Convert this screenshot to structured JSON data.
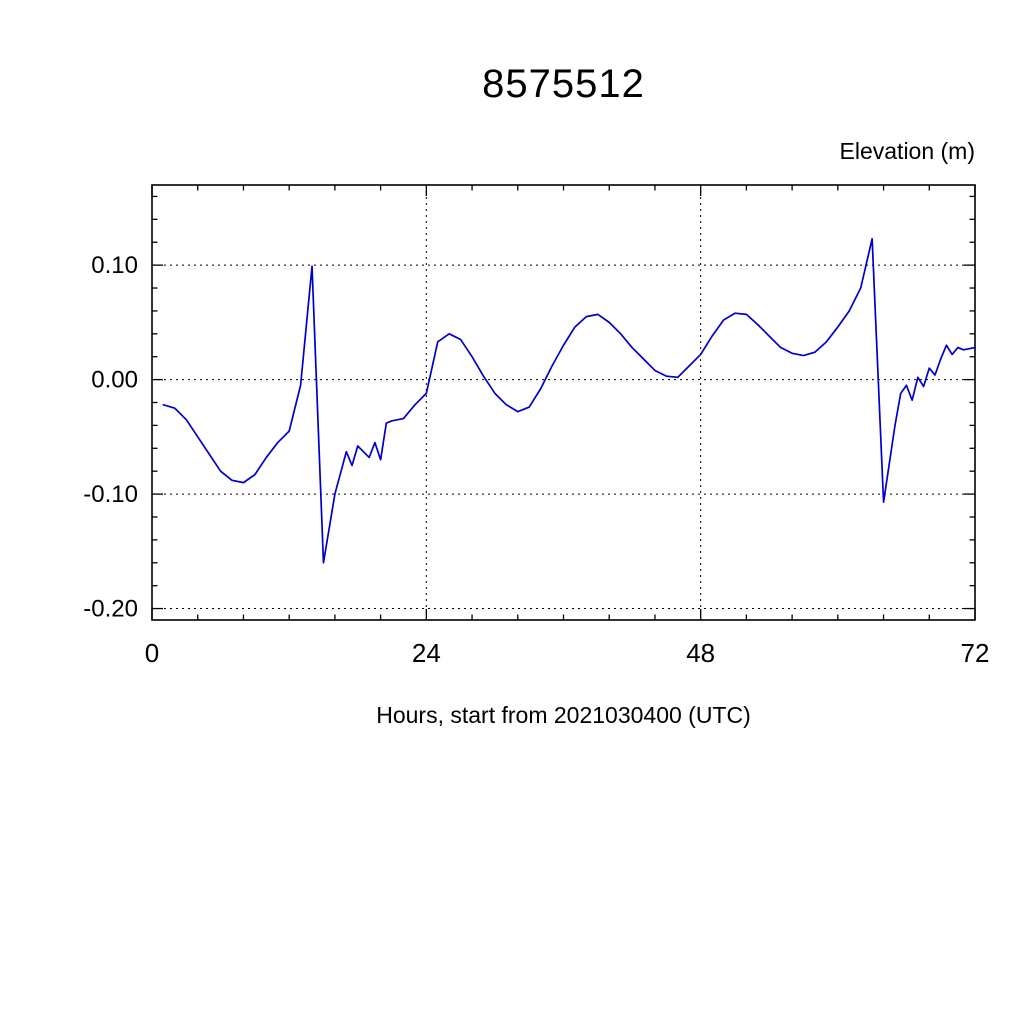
{
  "page": {
    "background_color": "#ffffff"
  },
  "chart": {
    "title": "8575512",
    "y_axis_title": "Elevation (m)",
    "x_axis_title": "Hours, start from 2021030400 (UTC)"
  },
  "chart_data": {
    "type": "line",
    "title": "8575512",
    "xlabel": "Hours, start from 2021030400 (UTC)",
    "ylabel": "Elevation (m)",
    "xlim": [
      0,
      72
    ],
    "ylim": [
      -0.21,
      0.17
    ],
    "x_major_ticks": [
      0,
      24,
      48,
      72
    ],
    "x_tick_labels": [
      "0",
      "24",
      "48",
      "72"
    ],
    "x_minor_step": 4,
    "y_major_ticks": [
      -0.2,
      -0.1,
      0,
      0.1
    ],
    "y_tick_labels": [
      "-0.20",
      "-0.10",
      "0.00",
      "0.10"
    ],
    "y_minor_step": 0.02,
    "grid": true,
    "grid_style": "dashed",
    "grid_x_lines": [
      24,
      48
    ],
    "grid_y_lines": [
      -0.2,
      -0.1,
      0,
      0.1
    ],
    "legend_position": "none",
    "line_color": "#0000cc",
    "axis_color": "#000000",
    "series": [
      {
        "name": "elevation",
        "points": [
          [
            1,
            -0.022
          ],
          [
            2,
            -0.025
          ],
          [
            3,
            -0.035
          ],
          [
            4,
            -0.05
          ],
          [
            5,
            -0.065
          ],
          [
            6,
            -0.08
          ],
          [
            7,
            -0.088
          ],
          [
            8,
            -0.09
          ],
          [
            9,
            -0.083
          ],
          [
            10,
            -0.068
          ],
          [
            11,
            -0.055
          ],
          [
            12,
            -0.045
          ],
          [
            13,
            -0.005
          ],
          [
            14,
            0.099
          ],
          [
            15,
            -0.16
          ],
          [
            16,
            -0.1
          ],
          [
            17,
            -0.063
          ],
          [
            17.5,
            -0.075
          ],
          [
            18,
            -0.058
          ],
          [
            19,
            -0.068
          ],
          [
            19.5,
            -0.055
          ],
          [
            20,
            -0.07
          ],
          [
            20.5,
            -0.038
          ],
          [
            21,
            -0.036
          ],
          [
            22,
            -0.034
          ],
          [
            23,
            -0.022
          ],
          [
            24,
            -0.012
          ],
          [
            25,
            0.033
          ],
          [
            26,
            0.04
          ],
          [
            27,
            0.035
          ],
          [
            28,
            0.02
          ],
          [
            29,
            0.003
          ],
          [
            30,
            -0.012
          ],
          [
            31,
            -0.022
          ],
          [
            32,
            -0.028
          ],
          [
            33,
            -0.024
          ],
          [
            34,
            -0.008
          ],
          [
            35,
            0.012
          ],
          [
            36,
            0.03
          ],
          [
            37,
            0.046
          ],
          [
            38,
            0.055
          ],
          [
            39,
            0.057
          ],
          [
            40,
            0.05
          ],
          [
            41,
            0.04
          ],
          [
            42,
            0.028
          ],
          [
            43,
            0.018
          ],
          [
            44,
            0.008
          ],
          [
            45,
            0.003
          ],
          [
            46,
            0.002
          ],
          [
            47,
            0.012
          ],
          [
            48,
            0.022
          ],
          [
            49,
            0.038
          ],
          [
            50,
            0.052
          ],
          [
            51,
            0.058
          ],
          [
            52,
            0.057
          ],
          [
            53,
            0.048
          ],
          [
            54,
            0.038
          ],
          [
            55,
            0.028
          ],
          [
            56,
            0.023
          ],
          [
            57,
            0.021
          ],
          [
            58,
            0.024
          ],
          [
            59,
            0.033
          ],
          [
            60,
            0.046
          ],
          [
            61,
            0.06
          ],
          [
            62,
            0.08
          ],
          [
            63,
            0.123
          ],
          [
            64,
            -0.107
          ],
          [
            65,
            -0.04
          ],
          [
            65.5,
            -0.012
          ],
          [
            66,
            -0.005
          ],
          [
            66.5,
            -0.018
          ],
          [
            67,
            0.002
          ],
          [
            67.5,
            -0.006
          ],
          [
            68,
            0.01
          ],
          [
            68.5,
            0.004
          ],
          [
            69,
            0.018
          ],
          [
            69.5,
            0.03
          ],
          [
            70,
            0.022
          ],
          [
            70.5,
            0.028
          ],
          [
            71,
            0.026
          ],
          [
            72,
            0.028
          ]
        ]
      }
    ]
  }
}
